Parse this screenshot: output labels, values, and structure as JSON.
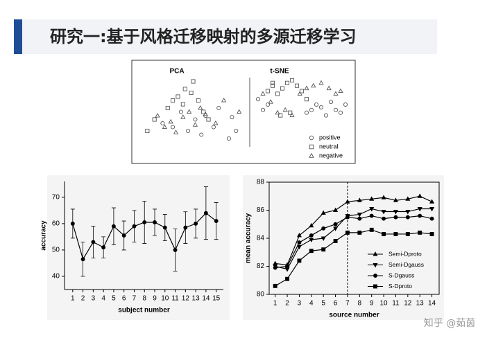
{
  "slide_title": "研究一:基于风格迁移映射的多源迁移学习",
  "watermark": "知乎 @茹茵",
  "chart_data": [
    {
      "type": "scatter",
      "series": [
        {
          "name": "positive",
          "marker": "circle"
        },
        {
          "name": "neutral",
          "marker": "square"
        },
        {
          "name": "negative",
          "marker": "triangle-up"
        }
      ],
      "color": "#555555",
      "panels": [
        {
          "title": "PCA",
          "xlim": [
            0,
            100
          ],
          "ylim": [
            0,
            100
          ],
          "series": [
            {
              "x": [
                20,
                30,
                38,
                45,
                52,
                58,
                62,
                70,
                75,
                85,
                88,
                92
              ],
              "y": [
                40,
                35,
                55,
                30,
                45,
                25,
                50,
                35,
                60,
                20,
                48,
                30
              ]
            },
            {
              "x": [
                5,
                12,
                25,
                35,
                40,
                48,
                55,
                60,
                65,
                50,
                42,
                30
              ],
              "y": [
                30,
                45,
                60,
                75,
                65,
                80,
                70,
                55,
                45,
                95,
                85,
                70
              ]
            },
            {
              "x": [
                15,
                22,
                28,
                33,
                40,
                46,
                52,
                57,
                62,
                72,
                80,
                95
              ],
              "y": [
                50,
                35,
                42,
                28,
                48,
                55,
                38,
                60,
                52,
                40,
                70,
                55
              ]
            }
          ]
        },
        {
          "title": "t-SNE",
          "xlim": [
            0,
            100
          ],
          "ylim": [
            0,
            100
          ],
          "series": [
            {
              "x": [
                5,
                10,
                15,
                55,
                60,
                65,
                70,
                75,
                80,
                85,
                90,
                95
              ],
              "y": [
                60,
                40,
                50,
                35,
                40,
                50,
                45,
                30,
                55,
                40,
                35,
                50
              ]
            },
            {
              "x": [
                15,
                20,
                25,
                30,
                35,
                40,
                45,
                50,
                55,
                28,
                38,
                20
              ],
              "y": [
                75,
                85,
                70,
                80,
                90,
                95,
                85,
                75,
                60,
                30,
                35,
                90
              ]
            },
            {
              "x": [
                10,
                18,
                25,
                33,
                40,
                48,
                55,
                62,
                70,
                78,
                85,
                90
              ],
              "y": [
                70,
                55,
                35,
                40,
                30,
                70,
                80,
                85,
                90,
                80,
                70,
                75
              ]
            }
          ]
        }
      ]
    },
    {
      "type": "line",
      "error_bars": true,
      "color": "#000000",
      "x_label": "subject number",
      "y_label": "accuracy",
      "x": [
        1,
        2,
        3,
        4,
        5,
        6,
        7,
        8,
        9,
        10,
        11,
        12,
        13,
        14,
        15
      ],
      "values": [
        60,
        46.5,
        53,
        51,
        59,
        55.5,
        59,
        60.5,
        60.5,
        58.5,
        50,
        58.5,
        60,
        64,
        61
      ],
      "errors": [
        5.5,
        6.5,
        6,
        4,
        7,
        5.5,
        6,
        8,
        5,
        5,
        8,
        6,
        5.5,
        10,
        7
      ],
      "xlim": [
        0.2,
        15.7
      ],
      "xticks": [
        1,
        2,
        3,
        4,
        5,
        6,
        7,
        8,
        9,
        10,
        11,
        12,
        13,
        14,
        15
      ],
      "ylim": [
        35,
        76
      ],
      "yticks": [
        40,
        50,
        60,
        70
      ]
    },
    {
      "type": "line",
      "color": "#000000",
      "x_label": "source number",
      "y_label": "mean accuracy",
      "reference_line_x": 7,
      "x": [
        1,
        2,
        3,
        4,
        5,
        6,
        7,
        8,
        9,
        10,
        11,
        12,
        13,
        14
      ],
      "series": [
        {
          "name": "Semi-Dproto",
          "marker": "triangle-up",
          "values": [
            82.2,
            82.1,
            84.2,
            84.9,
            85.8,
            86.0,
            86.6,
            86.7,
            86.8,
            86.9,
            86.7,
            86.8,
            87.0,
            86.6
          ]
        },
        {
          "name": "Semi-Dgauss",
          "marker": "triangle-down",
          "values": [
            82.0,
            81.8,
            83.4,
            83.9,
            84.0,
            84.7,
            85.6,
            85.7,
            86.1,
            85.9,
            85.9,
            85.9,
            86.1,
            86.1
          ]
        },
        {
          "name": "S-Dgauss",
          "marker": "circle",
          "values": [
            81.9,
            82.0,
            83.7,
            84.2,
            84.7,
            85.0,
            85.5,
            85.4,
            85.6,
            85.4,
            85.5,
            85.5,
            85.6,
            85.4
          ]
        },
        {
          "name": "S-Dproto",
          "marker": "square",
          "values": [
            80.6,
            81.1,
            82.4,
            83.1,
            83.2,
            83.8,
            84.4,
            84.4,
            84.6,
            84.3,
            84.3,
            84.3,
            84.4,
            84.3
          ]
        }
      ],
      "xlim": [
        0.5,
        14.6
      ],
      "xticks": [
        1,
        2,
        3,
        4,
        5,
        6,
        7,
        8,
        9,
        10,
        11,
        12,
        13,
        14
      ],
      "ylim": [
        80,
        88
      ],
      "yticks": [
        80,
        82,
        84,
        86,
        88
      ]
    }
  ]
}
